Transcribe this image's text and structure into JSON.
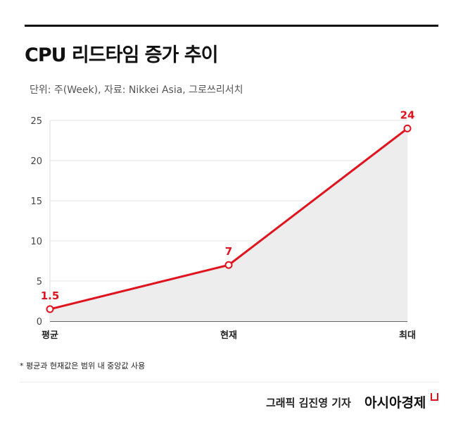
{
  "title": "CPU 리드타임 증가 추이",
  "subtitle": "단위: 주(Week), 자료: Nikkei Asia, 그로쓰리서치",
  "note": "* 평균과 현재값은 범위 내 중앙값 사용",
  "credit": "그래픽  김진영 기자",
  "logo": "아시아경제",
  "colors": {
    "line": "#e0141e",
    "area": "#ededed",
    "grid": "#e5e5e5"
  },
  "chart_data": {
    "type": "line",
    "title": "CPU 리드타임 증가 추이",
    "categories": [
      "평균",
      "현재",
      "최대"
    ],
    "values": [
      1.5,
      7,
      24
    ],
    "data_labels": [
      "1.5",
      "7",
      "24"
    ],
    "yticks": [
      "0",
      "5",
      "10",
      "15",
      "20",
      "25"
    ],
    "ylim": [
      0,
      25
    ],
    "xlabel": "",
    "ylabel": "주(Week)",
    "grid": true,
    "area_fill": true
  }
}
